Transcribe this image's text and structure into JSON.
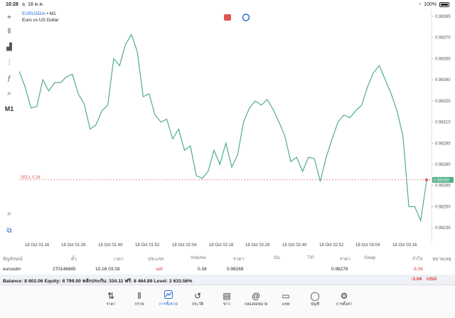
{
  "status_bar": {
    "time": "10:28",
    "date": "อ. 18 ต.ค.",
    "battery": "100%"
  },
  "toolbar": [
    {
      "name": "crosshair-icon",
      "glyph": "⌖"
    },
    {
      "name": "candles-icon",
      "glyph": "⫴"
    },
    {
      "name": "bars-icon",
      "glyph": "▟"
    },
    {
      "name": "indicators-icon",
      "glyph": "⫶"
    },
    {
      "name": "function-icon",
      "glyph": "ƒ"
    },
    {
      "name": "objects-icon",
      "glyph": "⌕"
    },
    {
      "name": "timeframe-label",
      "glyph": "M1"
    }
  ],
  "chart": {
    "symbol": "EURUSDm",
    "timeframe": "• M1",
    "description": "Euro vs US Dollar",
    "sell_label": "SELL 0.34",
    "current_price_label": "0.98269",
    "price_labels": [
      "0.98385",
      "0.98370",
      "0.98355",
      "0.98340",
      "0.98325",
      "0.98310",
      "0.98295",
      "0.98280",
      "0.98265",
      "0.98250",
      "0.98235"
    ],
    "time_labels": [
      "18 Oct 01:16",
      "18 Oct 01:28",
      "18 Oct 01:40",
      "18 Oct 01:52",
      "18 Oct 02:04",
      "18 Oct 02:16",
      "18 Oct 02:28",
      "18 Oct 02:40",
      "18 Oct 02:52",
      "18 Oct 03:04",
      "18 Oct 03:16"
    ],
    "line_color": "#4fae8a",
    "sell_color": "#e05555"
  },
  "chart_data": {
    "type": "line",
    "series": [
      {
        "values": [
          0.98346,
          0.98335,
          0.9832,
          0.98321,
          0.9834,
          0.98332,
          0.98338,
          0.98338,
          0.98342,
          0.98344,
          0.9833,
          0.98323,
          0.98305,
          0.98308,
          0.98318,
          0.98322,
          0.98355,
          0.9835,
          0.98365,
          0.98372,
          0.9836,
          0.98328,
          0.9833,
          0.98315,
          0.9831,
          0.98312,
          0.98298,
          0.98305,
          0.9829,
          0.98293,
          0.98272,
          0.9827,
          0.98275,
          0.9829,
          0.9828,
          0.98295,
          0.98278,
          0.98287,
          0.9831,
          0.9832,
          0.98325,
          0.98322,
          0.98326,
          0.98319,
          0.9831,
          0.983,
          0.98282,
          0.98285,
          0.98275,
          0.98285,
          0.98284,
          0.98268,
          0.98285,
          0.98298,
          0.9831,
          0.98315,
          0.98313,
          0.98318,
          0.98322,
          0.98335,
          0.98345,
          0.9835,
          0.9834,
          0.9833,
          0.98318,
          0.983,
          0.9825,
          0.9825,
          0.9824,
          0.98268
        ]
      }
    ]
  },
  "table": {
    "headers": [
      "สัญลักษณ์",
      "ตั๋ว",
      "เวลา",
      "ประเภท",
      "Volume",
      "ราคา",
      "S/L",
      "T/P",
      "ราคา",
      "Swap",
      "กำไร",
      "หมายเหตุ"
    ],
    "row": {
      "symbol": "eurusdm",
      "ticket": "270146845",
      "time": "10.18 03:28",
      "type": "sell",
      "volume": "0.34",
      "open_price": "0.98269",
      "current_price": "0.98278",
      "profit": "-3.06"
    }
  },
  "balance": {
    "text": "Balance: 8 802.06 Equity: 8 799.00 หลักประกัน: 334.11 ฟรี: 8 464.89 Level: 2 633.56%",
    "total": "-3.06",
    "currency": "USD"
  },
  "tabs": [
    {
      "name": "tab-quotes",
      "label": "ราคา",
      "icon": "⇅",
      "icon_name": "quotes-icon"
    },
    {
      "name": "tab-chart",
      "label": "กราฟ",
      "icon": "⫴",
      "icon_name": "chart-icon"
    },
    {
      "name": "tab-trade",
      "label": "การซื้อขาย",
      "icon": "📈",
      "icon_name": "trade-icon",
      "active": true
    },
    {
      "name": "tab-history",
      "label": "ประวัติ",
      "icon": "↺",
      "icon_name": "history-icon"
    },
    {
      "name": "tab-news",
      "label": "ข่าว",
      "icon": "▤",
      "icon_name": "news-icon"
    },
    {
      "name": "tab-mailbox",
      "label": "กล่องจดหมาย",
      "icon": "@",
      "icon_name": "mail-icon"
    },
    {
      "name": "tab-chat",
      "label": "แชท",
      "icon": "▭",
      "icon_name": "chat-icon"
    },
    {
      "name": "tab-account",
      "label": "บัญชี",
      "icon": "◯",
      "icon_name": "account-icon"
    },
    {
      "name": "tab-settings",
      "label": "การตั้งค่า",
      "icon": "⚙",
      "icon_name": "settings-icon"
    }
  ]
}
